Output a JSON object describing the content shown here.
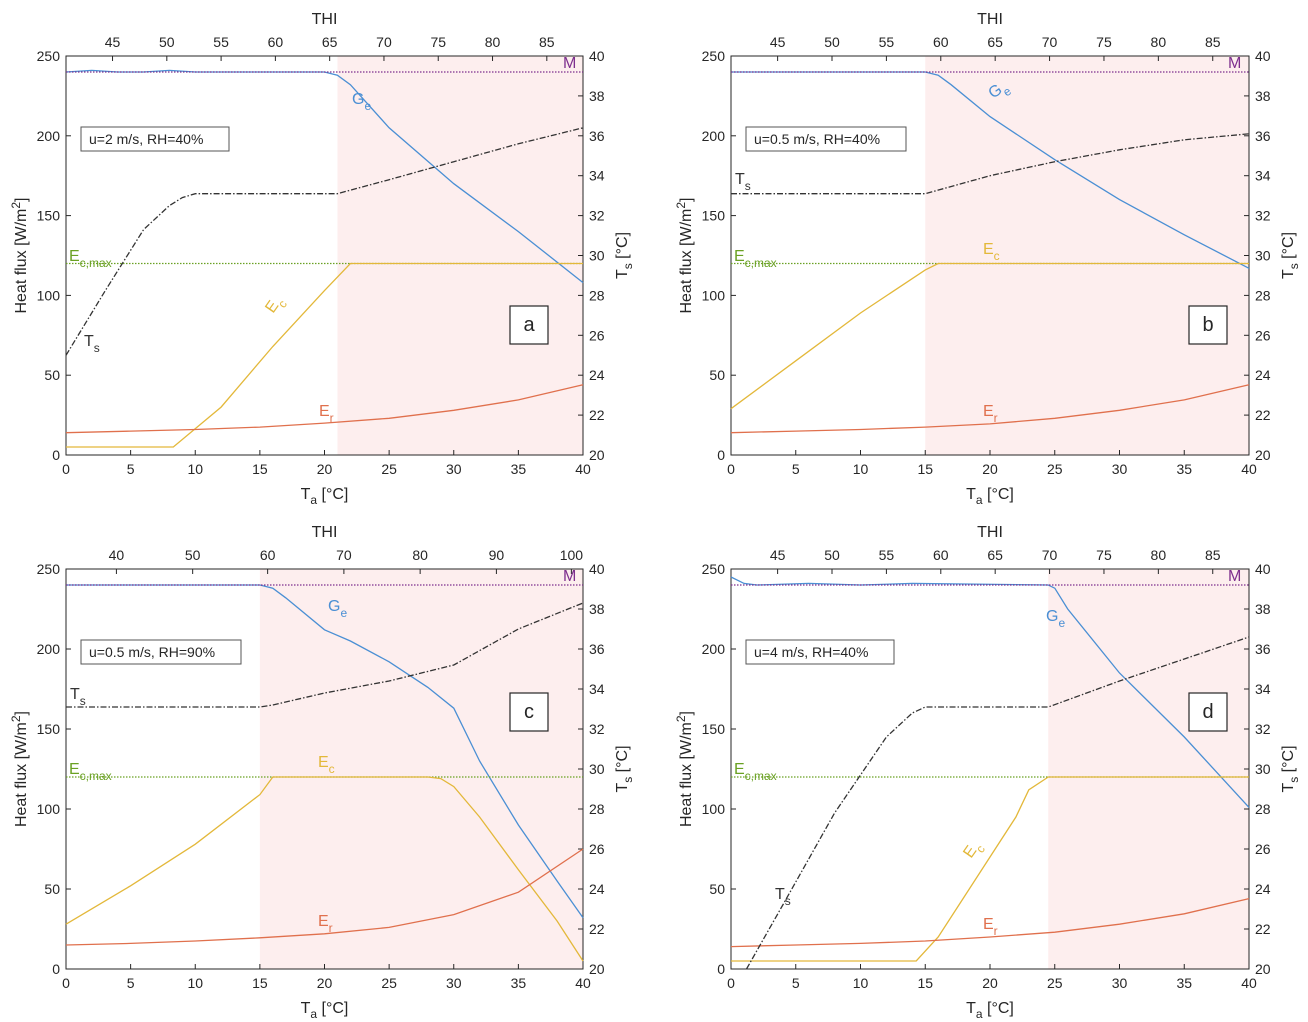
{
  "colors": {
    "Ge": "#4a8fd4",
    "Ec": "#e3b83a",
    "Er": "#e0704d",
    "Ecmax": "#6aa123",
    "M": "#7e2f8e",
    "Ts": "#333333",
    "shade": "#fdeeee",
    "axis": "#262626"
  },
  "chart_data": [
    {
      "panel": "a",
      "type": "line",
      "condition": "u=2 m/s, RH=40%",
      "title": "THI",
      "xlabel": "T_a [°C]",
      "ylabel": "Heat flux [W/m^2]",
      "y2label": "T_s [°C]",
      "xlim": [
        0,
        40
      ],
      "ylim": [
        0,
        250
      ],
      "y2lim": [
        20,
        40
      ],
      "xticks": [
        0,
        5,
        10,
        15,
        20,
        25,
        30,
        35,
        40
      ],
      "yticks": [
        0,
        50,
        100,
        150,
        200,
        250
      ],
      "y2ticks": [
        20,
        22,
        24,
        26,
        28,
        30,
        32,
        34,
        36,
        38,
        40
      ],
      "thi_axis": {
        "ticks": [
          45,
          50,
          55,
          60,
          65,
          70,
          75,
          80,
          85
        ],
        "ta_at_ticks": [
          3.6,
          7.8,
          12.0,
          16.2,
          20.4,
          24.6,
          28.8,
          33.0,
          37.2
        ]
      },
      "shaded_from_ta": 21,
      "series": [
        {
          "name": "G_e",
          "key": "Ge",
          "x": [
            0,
            2,
            4,
            6,
            8,
            10,
            20,
            21,
            22,
            25,
            30,
            35,
            40
          ],
          "y": [
            240,
            241,
            240,
            240,
            241,
            240,
            240,
            238,
            232,
            205,
            170,
            140,
            108
          ]
        },
        {
          "name": "M",
          "key": "M",
          "x": [
            0,
            40
          ],
          "y": [
            240,
            240
          ]
        },
        {
          "name": "E_c,max",
          "key": "Ecmax",
          "x": [
            0,
            40
          ],
          "y": [
            120,
            120
          ]
        },
        {
          "name": "E_c",
          "key": "Ec",
          "x": [
            0,
            8.3,
            12,
            16,
            20,
            22,
            40
          ],
          "y": [
            5,
            5,
            30,
            68,
            103,
            120,
            120
          ]
        },
        {
          "name": "E_r",
          "key": "Er",
          "x": [
            0,
            5,
            10,
            15,
            20,
            25,
            30,
            35,
            40
          ],
          "y": [
            14,
            15,
            16,
            17.5,
            20,
            23,
            28,
            34.5,
            44
          ]
        },
        {
          "name": "T_s",
          "key": "Ts",
          "axis": "y2",
          "x": [
            0,
            3,
            6,
            8,
            9,
            10,
            21,
            25,
            30,
            35,
            40
          ],
          "y": [
            25,
            28.2,
            31.3,
            32.5,
            32.9,
            33.1,
            33.1,
            33.8,
            34.7,
            35.6,
            36.4
          ]
        }
      ],
      "labels": [
        {
          "text": "G",
          "sub": "e",
          "key": "Ge"
        },
        {
          "text": "E",
          "sub": "c,max",
          "key": "Ecmax"
        },
        {
          "text": "E",
          "sub": "c",
          "key": "Ec"
        },
        {
          "text": "E",
          "sub": "r",
          "key": "Er"
        },
        {
          "text": "T",
          "sub": "s",
          "key": "Ts"
        },
        {
          "text": "M",
          "sub": "",
          "key": "M"
        }
      ]
    },
    {
      "panel": "b",
      "type": "line",
      "condition": "u=0.5 m/s, RH=40%",
      "title": "THI",
      "xlabel": "T_a [°C]",
      "ylabel": "Heat flux [W/m^2]",
      "y2label": "T_s [°C]",
      "xlim": [
        0,
        40
      ],
      "ylim": [
        0,
        250
      ],
      "y2lim": [
        20,
        40
      ],
      "xticks": [
        0,
        5,
        10,
        15,
        20,
        25,
        30,
        35,
        40
      ],
      "yticks": [
        0,
        50,
        100,
        150,
        200,
        250
      ],
      "y2ticks": [
        20,
        22,
        24,
        26,
        28,
        30,
        32,
        34,
        36,
        38,
        40
      ],
      "thi_axis": {
        "ticks": [
          45,
          50,
          55,
          60,
          65,
          70,
          75,
          80,
          85
        ],
        "ta_at_ticks": [
          3.6,
          7.8,
          12.0,
          16.2,
          20.4,
          24.6,
          28.8,
          33.0,
          37.2
        ]
      },
      "shaded_from_ta": 15,
      "series": [
        {
          "name": "G_e",
          "key": "Ge",
          "x": [
            0,
            15,
            16,
            17,
            20,
            25,
            30,
            35,
            40
          ],
          "y": [
            240,
            240,
            238,
            232,
            212,
            185,
            160,
            138,
            117
          ]
        },
        {
          "name": "M",
          "key": "M",
          "x": [
            0,
            40
          ],
          "y": [
            240,
            240
          ]
        },
        {
          "name": "E_c,max",
          "key": "Ecmax",
          "x": [
            0,
            40
          ],
          "y": [
            120,
            120
          ]
        },
        {
          "name": "E_c",
          "key": "Ec",
          "x": [
            0,
            5,
            10,
            15,
            16,
            40
          ],
          "y": [
            29,
            59,
            89,
            116,
            120,
            120
          ]
        },
        {
          "name": "E_r",
          "key": "Er",
          "x": [
            0,
            5,
            10,
            15,
            20,
            25,
            30,
            35,
            40
          ],
          "y": [
            14,
            15,
            16,
            17.5,
            19.5,
            23,
            28,
            34.5,
            44
          ]
        },
        {
          "name": "T_s",
          "key": "Ts",
          "axis": "y2",
          "x": [
            0,
            15,
            20,
            25,
            30,
            35,
            40
          ],
          "y": [
            33.1,
            33.1,
            34.0,
            34.7,
            35.3,
            35.8,
            36.1
          ]
        }
      ],
      "labels": [
        {
          "text": "G",
          "sub": "e",
          "key": "Ge"
        },
        {
          "text": "E",
          "sub": "c,max",
          "key": "Ecmax"
        },
        {
          "text": "E",
          "sub": "c",
          "key": "Ec"
        },
        {
          "text": "E",
          "sub": "r",
          "key": "Er"
        },
        {
          "text": "T",
          "sub": "s",
          "key": "Ts"
        },
        {
          "text": "M",
          "sub": "",
          "key": "M"
        }
      ]
    },
    {
      "panel": "c",
      "type": "line",
      "condition": "u=0.5 m/s, RH=90%",
      "title": "THI",
      "xlabel": "T_a [°C]",
      "ylabel": "Heat flux [W/m^2]",
      "y2label": "T_s [°C]",
      "xlim": [
        0,
        40
      ],
      "ylim": [
        0,
        250
      ],
      "y2lim": [
        20,
        40
      ],
      "xticks": [
        0,
        5,
        10,
        15,
        20,
        25,
        30,
        35,
        40
      ],
      "yticks": [
        0,
        50,
        100,
        150,
        200,
        250
      ],
      "y2ticks": [
        20,
        22,
        24,
        26,
        28,
        30,
        32,
        34,
        36,
        38,
        40
      ],
      "thi_axis": {
        "ticks": [
          40,
          50,
          60,
          70,
          80,
          90,
          100
        ],
        "ta_at_ticks": [
          3.9,
          9.8,
          15.6,
          21.5,
          27.4,
          33.3,
          39.1
        ]
      },
      "shaded_from_ta": 15,
      "series": [
        {
          "name": "G_e",
          "key": "Ge",
          "x": [
            0,
            15,
            16,
            17,
            20,
            22,
            25,
            28,
            30,
            32,
            35,
            38,
            40
          ],
          "y": [
            240,
            240,
            238,
            232,
            212,
            205,
            192,
            176,
            163,
            130,
            90,
            55,
            32
          ]
        },
        {
          "name": "M",
          "key": "M",
          "x": [
            0,
            40
          ],
          "y": [
            240,
            240
          ]
        },
        {
          "name": "E_c,max",
          "key": "Ecmax",
          "x": [
            0,
            40
          ],
          "y": [
            120,
            120
          ]
        },
        {
          "name": "E_c",
          "key": "Ec",
          "x": [
            0,
            5,
            10,
            15,
            16,
            28,
            29,
            30,
            32,
            35,
            38,
            40
          ],
          "y": [
            28,
            52,
            78,
            109,
            120,
            120,
            119,
            114,
            95,
            62,
            30,
            5
          ]
        },
        {
          "name": "E_r",
          "key": "Er",
          "x": [
            0,
            5,
            10,
            15,
            20,
            25,
            30,
            35,
            40
          ],
          "y": [
            15,
            16,
            17.5,
            19.5,
            22,
            26,
            34,
            48,
            75
          ]
        },
        {
          "name": "T_s",
          "key": "Ts",
          "axis": "y2",
          "x": [
            0,
            15,
            16,
            20,
            25,
            30,
            35,
            40
          ],
          "y": [
            33.1,
            33.1,
            33.2,
            33.8,
            34.4,
            35.2,
            37.0,
            38.3
          ]
        }
      ],
      "labels": [
        {
          "text": "G",
          "sub": "e",
          "key": "Ge"
        },
        {
          "text": "E",
          "sub": "c,max",
          "key": "Ecmax"
        },
        {
          "text": "E",
          "sub": "c",
          "key": "Ec"
        },
        {
          "text": "E",
          "sub": "r",
          "key": "Er"
        },
        {
          "text": "T",
          "sub": "s",
          "key": "Ts"
        },
        {
          "text": "M",
          "sub": "",
          "key": "M"
        }
      ]
    },
    {
      "panel": "d",
      "type": "line",
      "condition": "u=4 m/s, RH=40%",
      "title": "THI",
      "xlabel": "T_a [°C]",
      "ylabel": "Heat flux [W/m^2]",
      "y2label": "T_s [°C]",
      "xlim": [
        0,
        40
      ],
      "ylim": [
        0,
        250
      ],
      "y2lim": [
        20,
        40
      ],
      "xticks": [
        0,
        5,
        10,
        15,
        20,
        25,
        30,
        35,
        40
      ],
      "yticks": [
        0,
        50,
        100,
        150,
        200,
        250
      ],
      "y2ticks": [
        20,
        22,
        24,
        26,
        28,
        30,
        32,
        34,
        36,
        38,
        40
      ],
      "thi_axis": {
        "ticks": [
          45,
          50,
          55,
          60,
          65,
          70,
          75,
          80,
          85
        ],
        "ta_at_ticks": [
          3.6,
          7.8,
          12.0,
          16.2,
          20.4,
          24.6,
          28.8,
          33.0,
          37.2
        ]
      },
      "shaded_from_ta": 24.5,
      "series": [
        {
          "name": "G_e",
          "key": "Ge",
          "x": [
            0,
            1,
            2,
            6,
            10,
            14,
            24.5,
            25,
            26,
            30,
            35,
            40
          ],
          "y": [
            245,
            241,
            240,
            241,
            240,
            241,
            240,
            238,
            225,
            185,
            145,
            101
          ]
        },
        {
          "name": "M",
          "key": "M",
          "x": [
            0,
            40
          ],
          "y": [
            240,
            240
          ]
        },
        {
          "name": "E_c,max",
          "key": "Ecmax",
          "x": [
            0,
            40
          ],
          "y": [
            120,
            120
          ]
        },
        {
          "name": "E_c",
          "key": "Ec",
          "x": [
            0,
            14.3,
            16,
            18,
            20,
            22,
            23,
            24.5,
            40
          ],
          "y": [
            5,
            5,
            20,
            45,
            70,
            95,
            112,
            120,
            120
          ]
        },
        {
          "name": "E_r",
          "key": "Er",
          "x": [
            0,
            5,
            10,
            15,
            20,
            25,
            30,
            35,
            40
          ],
          "y": [
            14,
            15,
            16,
            17.5,
            20,
            23,
            28,
            34.5,
            44
          ]
        },
        {
          "name": "T_s",
          "key": "Ts",
          "axis": "y2",
          "x": [
            1.2,
            4,
            8,
            12,
            14,
            15,
            24.5,
            30,
            35,
            40
          ],
          "y": [
            20,
            23.2,
            27.8,
            31.6,
            32.8,
            33.1,
            33.1,
            34.4,
            35.5,
            36.6
          ]
        }
      ],
      "labels": [
        {
          "text": "G",
          "sub": "e",
          "key": "Ge"
        },
        {
          "text": "E",
          "sub": "c,max",
          "key": "Ecmax"
        },
        {
          "text": "E",
          "sub": "c",
          "key": "Ec"
        },
        {
          "text": "E",
          "sub": "r",
          "key": "Er"
        },
        {
          "text": "T",
          "sub": "s",
          "key": "Ts"
        },
        {
          "text": "M",
          "sub": "",
          "key": "M"
        }
      ]
    }
  ]
}
